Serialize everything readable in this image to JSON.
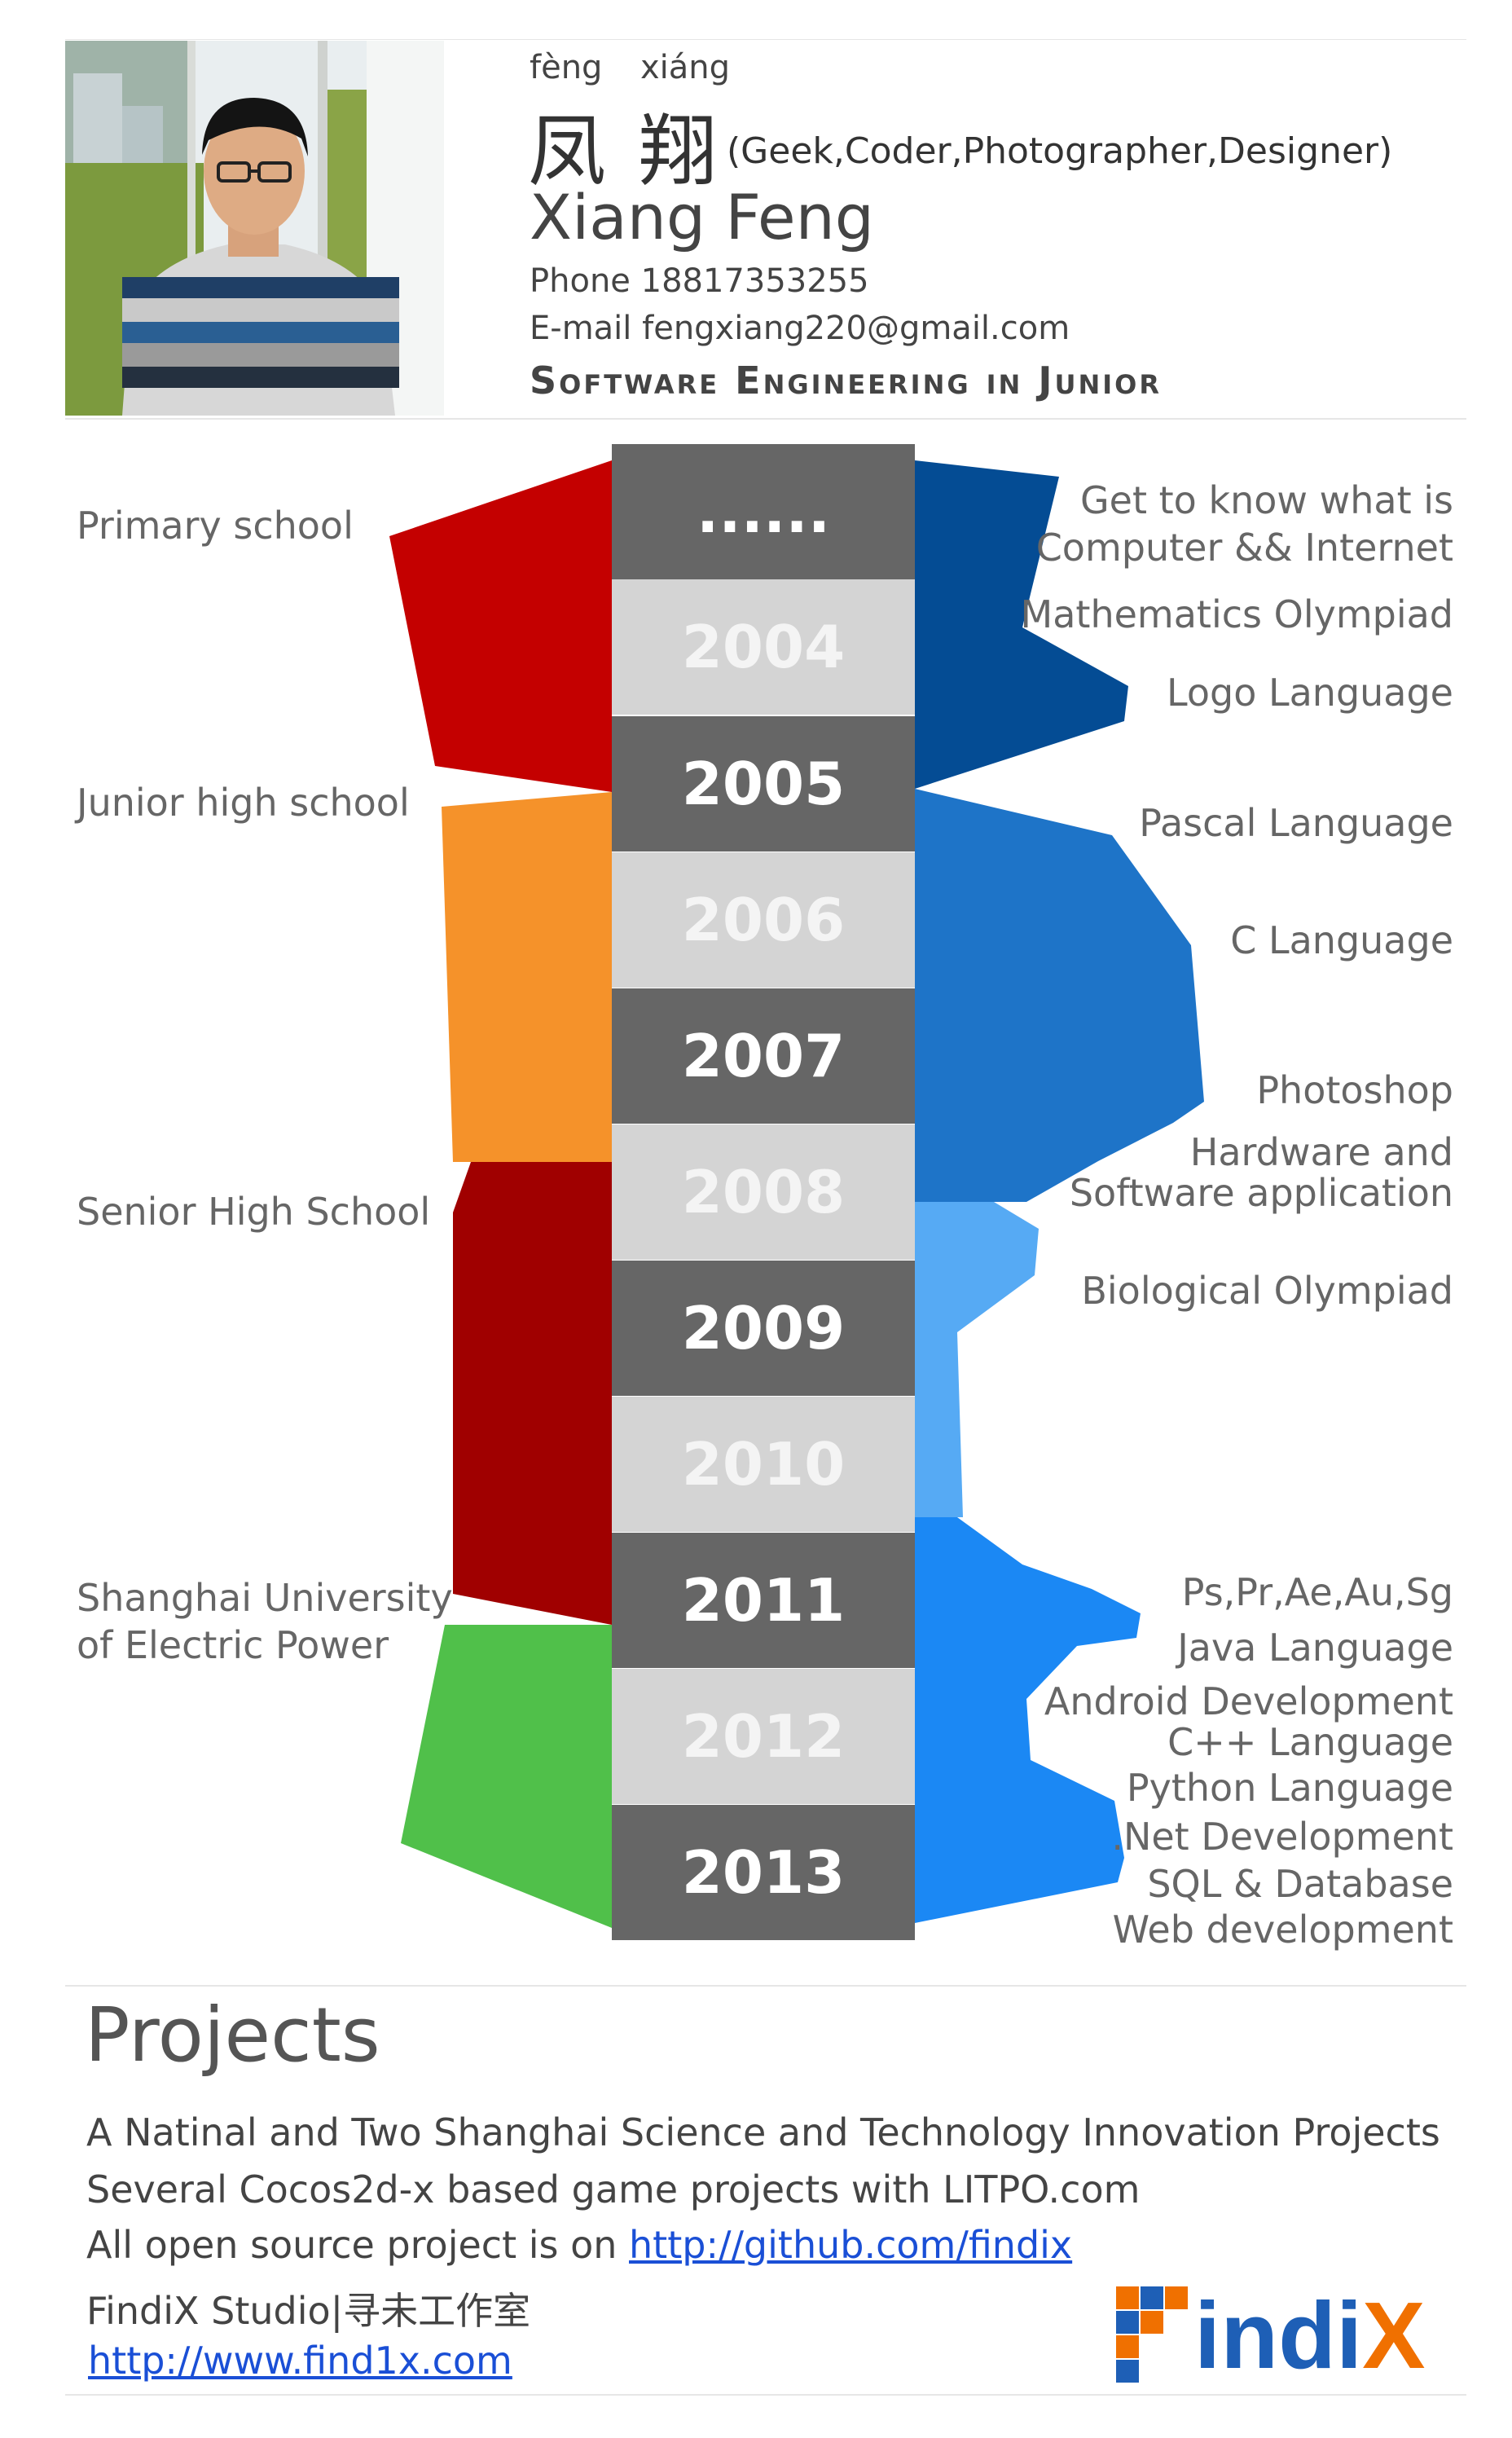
{
  "profile": {
    "pinyin_1": "fèng",
    "pinyin_2": "xiáng",
    "chinese_name": "凤翔",
    "roles": "(Geek,Coder,Photographer,Designer)",
    "english_name": "Xiang Feng",
    "phone": "Phone 18817353255",
    "email": "E-mail  fengxiang220@gmail.com",
    "major": "Software Engineering in Junior"
  },
  "timeline": {
    "years": [
      {
        "label": "......",
        "style": "dark"
      },
      {
        "label": "2004",
        "style": "light"
      },
      {
        "label": "2005",
        "style": "dark"
      },
      {
        "label": "2006",
        "style": "light"
      },
      {
        "label": "2007",
        "style": "dark"
      },
      {
        "label": "2008",
        "style": "light"
      },
      {
        "label": "2009",
        "style": "dark"
      },
      {
        "label": "2010",
        "style": "light"
      },
      {
        "label": "2011",
        "style": "dark"
      },
      {
        "label": "2012",
        "style": "light"
      },
      {
        "label": "2013",
        "style": "dark"
      }
    ],
    "stages": [
      {
        "label": "Primary school",
        "color": "#c40000"
      },
      {
        "label": "Junior high school",
        "color": "#f5922a"
      },
      {
        "label": "Senior High School",
        "color": "#a00000"
      },
      {
        "label_1": "Shanghai University",
        "label_2": "of Electric Power",
        "color": "#50c04a"
      }
    ],
    "skill_colors": [
      "#044c94",
      "#1e74c8",
      "#56aaf4",
      "#1b88f4"
    ],
    "skills": [
      "Get to know what is",
      "Computer && Internet",
      "Mathematics Olympiad",
      "Logo Language",
      "Pascal Language",
      "C Language",
      "Photoshop",
      "Hardware and",
      "Software application",
      "Biological  Olympiad",
      "Ps,Pr,Ae,Au,Sg",
      "Java Language",
      "Android Development",
      "C++ Language",
      "Python Language",
      ".Net Development",
      "SQL & Database",
      "Web development"
    ]
  },
  "projects": {
    "title": "Projects",
    "line_1": "A Natinal and Two Shanghai Science and Technology Innovation Projects",
    "line_2": "Several Cocos2d-x based game projects with LITPO.com",
    "line_3_prefix": "All open source project is on ",
    "line_3_link": "http://github.com/findix",
    "studio": "FindiX Studio|寻未工作室",
    "studio_link": "http://www.find1x.com",
    "logo_text": "FindiX"
  }
}
